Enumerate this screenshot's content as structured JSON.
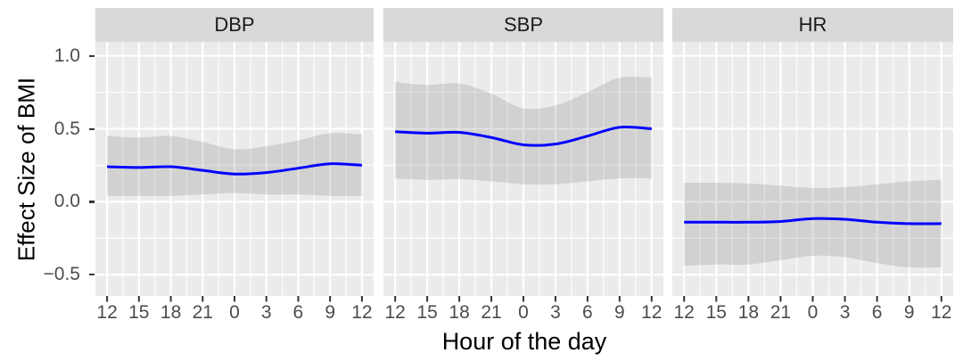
{
  "chart_data": {
    "type": "line",
    "title": "",
    "xlabel": "Hour of the day",
    "ylabel": "Effect Size of BMI",
    "facet_variable_values": [
      "DBP",
      "SBP",
      "HR"
    ],
    "x_hours": [
      12,
      15,
      18,
      21,
      0,
      3,
      6,
      9,
      12
    ],
    "x_tick_labels": [
      "12",
      "15",
      "18",
      "21",
      "0",
      "3",
      "6",
      "9",
      "12"
    ],
    "y_tick_labels": [
      "1.0",
      "0.5",
      "0.0",
      "−0.5"
    ],
    "y_tick_values": [
      1.0,
      0.5,
      0.0,
      -0.5
    ],
    "ylim": [
      -0.645,
      1.095
    ],
    "x_domain_hours_continuous": [
      12,
      36
    ],
    "grid": true,
    "legend_position": "none",
    "panels": [
      {
        "label": "DBP",
        "line": [
          0.24,
          0.235,
          0.24,
          0.215,
          0.19,
          0.2,
          0.23,
          0.26,
          0.25
        ],
        "upper": [
          0.45,
          0.44,
          0.45,
          0.41,
          0.36,
          0.38,
          0.42,
          0.47,
          0.46
        ],
        "lower": [
          0.04,
          0.04,
          0.04,
          0.05,
          0.06,
          0.05,
          0.05,
          0.04,
          0.04
        ]
      },
      {
        "label": "SBP",
        "line": [
          0.48,
          0.47,
          0.475,
          0.44,
          0.39,
          0.395,
          0.45,
          0.51,
          0.5
        ],
        "upper": [
          0.82,
          0.8,
          0.81,
          0.74,
          0.64,
          0.66,
          0.75,
          0.85,
          0.85
        ],
        "lower": [
          0.16,
          0.15,
          0.155,
          0.14,
          0.12,
          0.12,
          0.14,
          0.16,
          0.16
        ]
      },
      {
        "label": "HR",
        "line": [
          -0.14,
          -0.14,
          -0.14,
          -0.135,
          -0.115,
          -0.12,
          -0.14,
          -0.15,
          -0.15
        ],
        "upper": [
          0.13,
          0.13,
          0.125,
          0.11,
          0.095,
          0.1,
          0.12,
          0.14,
          0.15
        ],
        "lower": [
          -0.44,
          -0.43,
          -0.43,
          -0.4,
          -0.37,
          -0.38,
          -0.42,
          -0.45,
          -0.45
        ]
      }
    ],
    "colors": {
      "line": "#0000FF",
      "band_fill": "#787878",
      "band_opacity": 0.22,
      "panel_background": "#EBEBEB",
      "strip_background": "#D9D9D9",
      "gridline": "#FFFFFF",
      "tick_text": "#4D4D4D",
      "axis_title_text": "#000000",
      "tick_mark": "#333333"
    }
  }
}
